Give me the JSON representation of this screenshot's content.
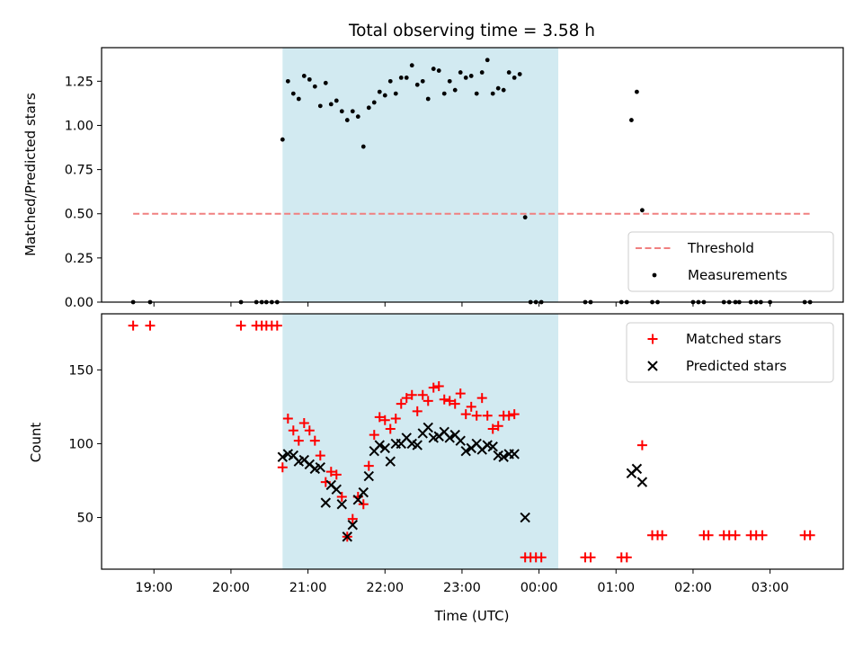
{
  "chart_data": [
    {
      "type": "scatter",
      "title": "Total observing time = 3.58 h",
      "ylabel": "Matched/Predicted stars",
      "xlabel": "",
      "ylim": [
        0,
        1.44
      ],
      "xlim": [
        -0.68,
        8.95
      ],
      "shaded_interval": {
        "start": 1.67,
        "end": 5.25,
        "color": "#add8e6"
      },
      "yticks": [
        {
          "v": 0,
          "label": "0.00"
        },
        {
          "v": 0.25,
          "label": "0.25"
        },
        {
          "v": 0.5,
          "label": "0.50"
        },
        {
          "v": 0.75,
          "label": "0.75"
        },
        {
          "v": 1.0,
          "label": "1.00"
        },
        {
          "v": 1.25,
          "label": "1.25"
        }
      ],
      "series": [
        {
          "name": "Threshold",
          "kind": "line",
          "color": "#f08080",
          "points": [
            [
              -0.27,
              0.5
            ],
            [
              8.52,
              0.5
            ]
          ]
        },
        {
          "name": "Measurements",
          "kind": "dot",
          "color": "#000000",
          "points": [
            [
              -0.27,
              0.0
            ],
            [
              -0.05,
              0.0
            ],
            [
              1.13,
              0.0
            ],
            [
              1.33,
              0.0
            ],
            [
              1.4,
              0.0
            ],
            [
              1.46,
              0.0
            ],
            [
              1.53,
              0.0
            ],
            [
              1.6,
              0.0
            ],
            [
              1.67,
              0.92
            ],
            [
              1.74,
              1.25
            ],
            [
              1.81,
              1.18
            ],
            [
              1.88,
              1.15
            ],
            [
              1.95,
              1.28
            ],
            [
              2.02,
              1.26
            ],
            [
              2.09,
              1.22
            ],
            [
              2.16,
              1.11
            ],
            [
              2.23,
              1.24
            ],
            [
              2.3,
              1.12
            ],
            [
              2.37,
              1.14
            ],
            [
              2.44,
              1.08
            ],
            [
              2.51,
              1.03
            ],
            [
              2.58,
              1.08
            ],
            [
              2.65,
              1.05
            ],
            [
              2.72,
              0.88
            ],
            [
              2.79,
              1.1
            ],
            [
              2.86,
              1.13
            ],
            [
              2.93,
              1.19
            ],
            [
              3.0,
              1.17
            ],
            [
              3.07,
              1.25
            ],
            [
              3.14,
              1.18
            ],
            [
              3.21,
              1.27
            ],
            [
              3.28,
              1.27
            ],
            [
              3.35,
              1.34
            ],
            [
              3.42,
              1.23
            ],
            [
              3.49,
              1.25
            ],
            [
              3.56,
              1.15
            ],
            [
              3.63,
              1.32
            ],
            [
              3.7,
              1.31
            ],
            [
              3.77,
              1.18
            ],
            [
              3.84,
              1.25
            ],
            [
              3.91,
              1.2
            ],
            [
              3.98,
              1.3
            ],
            [
              4.05,
              1.27
            ],
            [
              4.12,
              1.28
            ],
            [
              4.19,
              1.18
            ],
            [
              4.26,
              1.3
            ],
            [
              4.33,
              1.37
            ],
            [
              4.4,
              1.18
            ],
            [
              4.47,
              1.21
            ],
            [
              4.54,
              1.2
            ],
            [
              4.61,
              1.3
            ],
            [
              4.68,
              1.27
            ],
            [
              4.75,
              1.29
            ],
            [
              4.82,
              0.48
            ],
            [
              4.89,
              0.0
            ],
            [
              4.96,
              0.0
            ],
            [
              5.03,
              0.0
            ],
            [
              5.6,
              0.0
            ],
            [
              5.67,
              0.0
            ],
            [
              6.07,
              0.0
            ],
            [
              6.14,
              0.0
            ],
            [
              6.2,
              1.03
            ],
            [
              6.27,
              1.19
            ],
            [
              6.34,
              0.52
            ],
            [
              6.47,
              0.0
            ],
            [
              6.54,
              0.0
            ],
            [
              7.0,
              0.0
            ],
            [
              7.07,
              0.0
            ],
            [
              7.14,
              0.0
            ],
            [
              7.4,
              0.0
            ],
            [
              7.47,
              0.0
            ],
            [
              7.55,
              0.0
            ],
            [
              7.6,
              0.0
            ],
            [
              7.75,
              0.0
            ],
            [
              7.82,
              0.0
            ],
            [
              7.88,
              0.0
            ],
            [
              8.0,
              0.0
            ],
            [
              8.45,
              0.0
            ],
            [
              8.52,
              0.0
            ]
          ]
        }
      ],
      "legend": {
        "position": "lower right",
        "entries": [
          "Threshold",
          "Measurements"
        ]
      }
    },
    {
      "type": "scatter",
      "xlabel": "Time (UTC)",
      "ylabel": "Count",
      "xlim": [
        -0.68,
        8.95
      ],
      "ylim": [
        15,
        188
      ],
      "shaded_interval": {
        "start": 1.67,
        "end": 5.25,
        "color": "#add8e6"
      },
      "xticks": [
        {
          "v": 0,
          "label": "19:00"
        },
        {
          "v": 1,
          "label": "20:00"
        },
        {
          "v": 2,
          "label": "21:00"
        },
        {
          "v": 3,
          "label": "22:00"
        },
        {
          "v": 4,
          "label": "23:00"
        },
        {
          "v": 5,
          "label": "00:00"
        },
        {
          "v": 6,
          "label": "01:00"
        },
        {
          "v": 7,
          "label": "02:00"
        },
        {
          "v": 8,
          "label": "03:00"
        }
      ],
      "yticks": [
        {
          "v": 50,
          "label": "50"
        },
        {
          "v": 100,
          "label": "100"
        },
        {
          "v": 150,
          "label": "150"
        }
      ],
      "series": [
        {
          "name": "Matched stars",
          "kind": "plus",
          "color": "#ff0000",
          "points": [
            [
              -0.27,
              180
            ],
            [
              -0.05,
              180
            ],
            [
              1.13,
              180
            ],
            [
              1.33,
              180
            ],
            [
              1.4,
              180
            ],
            [
              1.46,
              180
            ],
            [
              1.53,
              180
            ],
            [
              1.6,
              180
            ],
            [
              1.67,
              84
            ],
            [
              1.74,
              117
            ],
            [
              1.81,
              109
            ],
            [
              1.88,
              102
            ],
            [
              1.95,
              114
            ],
            [
              2.02,
              109
            ],
            [
              2.09,
              102
            ],
            [
              2.16,
              92
            ],
            [
              2.23,
              74
            ],
            [
              2.3,
              81
            ],
            [
              2.37,
              79
            ],
            [
              2.44,
              64
            ],
            [
              2.51,
              37
            ],
            [
              2.58,
              49
            ],
            [
              2.65,
              64
            ],
            [
              2.72,
              59
            ],
            [
              2.79,
              85
            ],
            [
              2.86,
              106
            ],
            [
              2.93,
              118
            ],
            [
              3.0,
              116
            ],
            [
              3.07,
              110
            ],
            [
              3.14,
              117
            ],
            [
              3.21,
              127
            ],
            [
              3.28,
              131
            ],
            [
              3.35,
              133
            ],
            [
              3.42,
              122
            ],
            [
              3.49,
              133
            ],
            [
              3.56,
              129
            ],
            [
              3.63,
              138
            ],
            [
              3.7,
              139
            ],
            [
              3.77,
              130
            ],
            [
              3.84,
              129
            ],
            [
              3.91,
              127
            ],
            [
              3.98,
              134
            ],
            [
              4.05,
              120
            ],
            [
              4.12,
              125
            ],
            [
              4.19,
              119
            ],
            [
              4.26,
              131
            ],
            [
              4.33,
              119
            ],
            [
              4.4,
              110
            ],
            [
              4.47,
              112
            ],
            [
              4.54,
              119
            ],
            [
              4.61,
              119
            ],
            [
              4.68,
              120
            ],
            [
              4.82,
              23
            ],
            [
              4.89,
              23
            ],
            [
              4.96,
              23
            ],
            [
              5.03,
              23
            ],
            [
              5.6,
              23
            ],
            [
              5.67,
              23
            ],
            [
              6.07,
              23
            ],
            [
              6.14,
              23
            ],
            [
              6.34,
              99
            ],
            [
              6.47,
              38
            ],
            [
              6.54,
              38
            ],
            [
              6.6,
              38
            ],
            [
              7.14,
              38
            ],
            [
              7.2,
              38
            ],
            [
              7.4,
              38
            ],
            [
              7.47,
              38
            ],
            [
              7.55,
              38
            ],
            [
              7.75,
              38
            ],
            [
              7.82,
              38
            ],
            [
              7.9,
              38
            ],
            [
              8.45,
              38
            ],
            [
              8.52,
              38
            ]
          ]
        },
        {
          "name": "Predicted stars",
          "kind": "cross",
          "color": "#000000",
          "points": [
            [
              1.67,
              91
            ],
            [
              1.74,
              93
            ],
            [
              1.81,
              92
            ],
            [
              1.88,
              88
            ],
            [
              1.95,
              89
            ],
            [
              2.02,
              86
            ],
            [
              2.09,
              83
            ],
            [
              2.16,
              84
            ],
            [
              2.23,
              60
            ],
            [
              2.3,
              72
            ],
            [
              2.37,
              69
            ],
            [
              2.44,
              59
            ],
            [
              2.51,
              37
            ],
            [
              2.58,
              45
            ],
            [
              2.65,
              62
            ],
            [
              2.72,
              67
            ],
            [
              2.79,
              78
            ],
            [
              2.86,
              95
            ],
            [
              2.93,
              99
            ],
            [
              3.0,
              97
            ],
            [
              3.07,
              88
            ],
            [
              3.14,
              100
            ],
            [
              3.21,
              100
            ],
            [
              3.28,
              104
            ],
            [
              3.35,
              100
            ],
            [
              3.42,
              99
            ],
            [
              3.49,
              107
            ],
            [
              3.56,
              111
            ],
            [
              3.63,
              104
            ],
            [
              3.7,
              105
            ],
            [
              3.77,
              108
            ],
            [
              3.84,
              104
            ],
            [
              3.91,
              106
            ],
            [
              3.98,
              102
            ],
            [
              4.05,
              95
            ],
            [
              4.12,
              97
            ],
            [
              4.19,
              100
            ],
            [
              4.26,
              96
            ],
            [
              4.33,
              99
            ],
            [
              4.4,
              98
            ],
            [
              4.47,
              92
            ],
            [
              4.54,
              91
            ],
            [
              4.61,
              93
            ],
            [
              4.68,
              93
            ],
            [
              4.82,
              50
            ],
            [
              6.2,
              80
            ],
            [
              6.27,
              83
            ],
            [
              6.34,
              74
            ]
          ]
        }
      ],
      "legend": {
        "position": "upper right",
        "entries": [
          "Matched stars",
          "Predicted stars"
        ]
      }
    }
  ]
}
